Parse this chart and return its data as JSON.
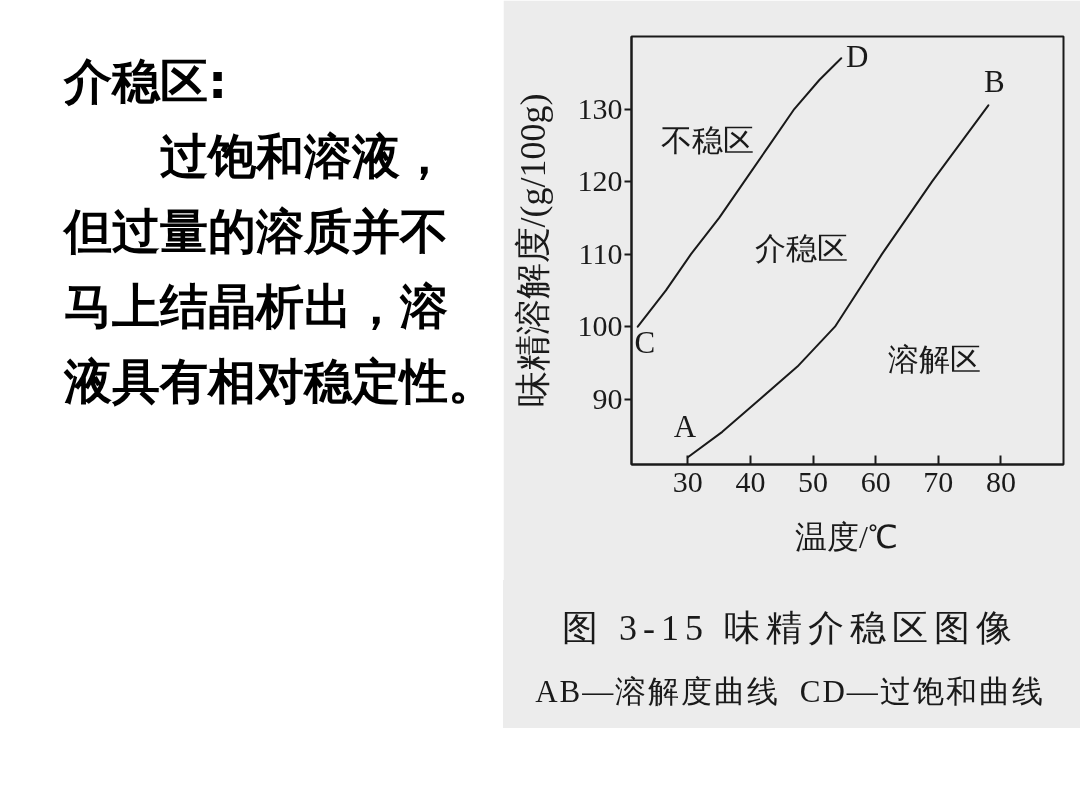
{
  "chart_data": {
    "type": "line",
    "title": "图 3-15 味精介稳区图像",
    "xlabel": "温度/℃",
    "ylabel": "味精溶解度/(g/100g)",
    "xlim": [
      21,
      90
    ],
    "ylim": [
      81,
      140
    ],
    "xticks": [
      30,
      40,
      50,
      60,
      70,
      80
    ],
    "yticks": [
      90,
      100,
      110,
      120,
      130
    ],
    "grid": false,
    "series": [
      {
        "color": "#1a1a1a",
        "x": [
          30,
          35.5,
          41.5,
          47.5,
          53.5,
          61,
          69,
          78
        ],
        "values": [
          82,
          85.5,
          90,
          94.5,
          100,
          110,
          120,
          130.5
        ]
      },
      {
        "color": "#1a1a1a",
        "x": [
          22,
          26.5,
          30.5,
          35,
          39,
          43,
          47,
          51,
          54.5
        ],
        "values": [
          100,
          105,
          110,
          115,
          120,
          125,
          130,
          134,
          137
        ]
      }
    ],
    "annotations": [
      "介稳区:",
      "过饱和溶液，但过量的溶质并不马上结晶析出，溶液具有相对稳定性。",
      "AB—溶解度曲线  CD—过饱和曲线",
      "不稳区",
      "介稳区",
      "溶解区",
      {
        "text": "A",
        "x": 30,
        "y": 82
      },
      {
        "text": "B",
        "x": 78,
        "y": 130.5
      },
      {
        "text": "C",
        "x": 22,
        "y": 100
      },
      {
        "text": "D",
        "x": 54.5,
        "y": 137
      }
    ]
  }
}
